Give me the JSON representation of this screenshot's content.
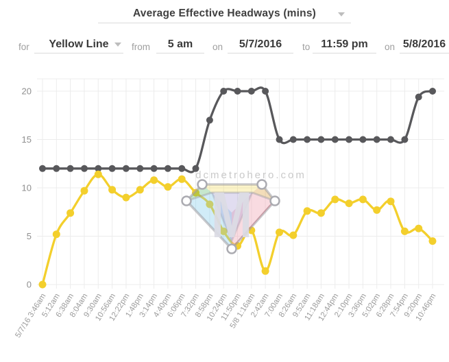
{
  "header": {
    "title": "Average Effective Headways (mins)"
  },
  "filters": {
    "for_label": "for",
    "line_value": "Yellow Line",
    "from_label": "from",
    "start_time": "5 am",
    "on_label_1": "on",
    "start_date": "5/7/2016",
    "to_label": "to",
    "end_time": "11:59 pm",
    "on_label_2": "on",
    "end_date": "5/8/2016"
  },
  "watermark": {
    "text": "dcmetrohero.com",
    "logo_letter": "M"
  },
  "colors": {
    "grid": "#ececec",
    "y_tick_label": "#8f8f8f",
    "x_tick_label": "#9b9b9b",
    "underline": "#dadada"
  },
  "chart_data": {
    "type": "line",
    "title": "Average Effective Headways (mins)",
    "xlabel": "",
    "ylabel": "",
    "legend": "none",
    "grid": true,
    "ylim": [
      0,
      21.4
    ],
    "yticks": [
      0,
      5,
      10,
      15,
      20
    ],
    "x_labels": [
      "5/7/16 3:46am",
      "5:12am",
      "6:38am",
      "8:04am",
      "9:30am",
      "10:56am",
      "12:22pm",
      "1:48pm",
      "3:14pm",
      "4:40pm",
      "6:06pm",
      "7:32pm",
      "8:58pm",
      "10:24pm",
      "11:50pm",
      "5/8 1:16am",
      "2:42am",
      "7:00am",
      "8:26am",
      "9:52am",
      "11:18am",
      "12:44pm",
      "2:10pm",
      "3:36pm",
      "5:02pm",
      "6:28pm",
      "7:54pm",
      "9:20pm",
      "10:46pm"
    ],
    "series": [
      {
        "name": "gray",
        "color": "#58585B",
        "values": [
          12,
          12,
          12,
          12,
          12,
          12,
          12,
          12,
          12,
          12,
          12,
          12,
          17,
          20,
          20,
          20,
          20,
          15,
          15,
          15,
          15,
          15,
          15,
          15,
          15,
          15,
          15,
          19.4,
          20
        ]
      },
      {
        "name": "yellow",
        "color": "#F3CF2C",
        "values": [
          0,
          5.2,
          7.4,
          9.7,
          11.4,
          9.8,
          9,
          9.8,
          10.8,
          10.1,
          10.9,
          9.5,
          8.3,
          5.5,
          4,
          5.6,
          1.4,
          5.4,
          5.1,
          7.6,
          7.4,
          8.8,
          8.4,
          8.8,
          7.7,
          8.6,
          5.5,
          5.8,
          4.5
        ]
      }
    ]
  }
}
